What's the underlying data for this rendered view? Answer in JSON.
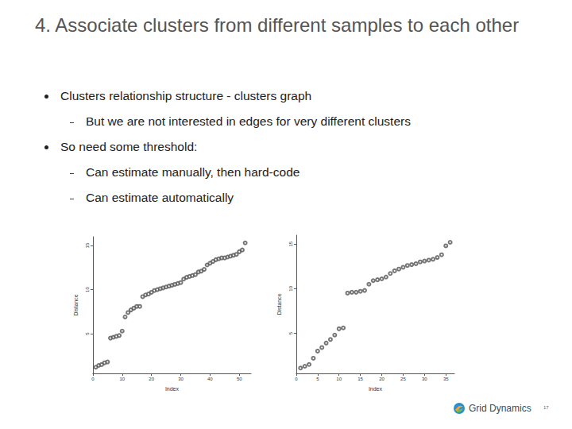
{
  "slide": {
    "title": "4. Associate clusters from different samples to each other",
    "bullets": [
      {
        "text": "Clusters relationship structure - clusters graph",
        "sub": [
          "But we are not interested in edges for very different clusters"
        ]
      },
      {
        "text": "So need some threshold:",
        "sub": [
          "Can estimate manually, then hard-code",
          "Can estimate automatically"
        ]
      }
    ],
    "footer": "Grid Dynamics",
    "page": "17"
  },
  "chart_data": [
    {
      "type": "scatter",
      "xlabel": "Index",
      "ylabel": "Distance",
      "x": [
        1,
        2,
        3,
        4,
        5,
        6,
        7,
        8,
        9,
        10,
        11,
        12,
        13,
        14,
        15,
        16,
        17,
        18,
        19,
        20,
        21,
        22,
        23,
        24,
        25,
        26,
        27,
        28,
        29,
        30,
        31,
        32,
        33,
        34,
        35,
        36,
        37,
        38,
        39,
        40,
        41,
        42,
        43,
        44,
        45,
        46,
        47,
        48,
        49,
        50,
        51,
        52
      ],
      "values": [
        1.2,
        1.4,
        1.5,
        1.7,
        1.8,
        4.5,
        4.6,
        4.7,
        4.8,
        5.3,
        6.9,
        7.4,
        7.7,
        7.9,
        8.1,
        8.1,
        9.2,
        9.4,
        9.5,
        9.7,
        9.9,
        10.0,
        10.1,
        10.2,
        10.3,
        10.4,
        10.5,
        10.6,
        10.7,
        10.8,
        11.2,
        11.4,
        11.5,
        11.6,
        11.7,
        12.0,
        12.1,
        12.3,
        12.8,
        13.0,
        13.2,
        13.4,
        13.5,
        13.6,
        13.6,
        13.7,
        13.8,
        13.9,
        14.0,
        14.3,
        14.5,
        15.3
      ],
      "xlim": [
        0,
        54
      ],
      "ylim": [
        0.5,
        16
      ],
      "xticks": [
        0,
        10,
        20,
        30,
        40,
        50
      ],
      "yticks": [
        5,
        10,
        15
      ],
      "color": "#555555",
      "marker": "circle_open",
      "grid": false
    },
    {
      "type": "scatter",
      "xlabel": "Index",
      "ylabel": "Distance",
      "x": [
        1,
        2,
        3,
        4,
        5,
        6,
        7,
        8,
        9,
        10,
        11,
        12,
        13,
        14,
        15,
        16,
        17,
        18,
        19,
        20,
        21,
        22,
        23,
        24,
        25,
        26,
        27,
        28,
        29,
        30,
        31,
        32,
        33,
        34,
        35,
        36
      ],
      "values": [
        1.1,
        1.3,
        1.5,
        2.2,
        3.0,
        3.4,
        3.9,
        4.3,
        4.8,
        5.5,
        5.6,
        9.5,
        9.6,
        9.6,
        9.7,
        9.8,
        10.5,
        10.9,
        11.0,
        11.1,
        11.3,
        11.7,
        12.0,
        12.2,
        12.4,
        12.6,
        12.7,
        12.8,
        13.0,
        13.1,
        13.2,
        13.3,
        13.5,
        13.8,
        14.8,
        15.2
      ],
      "xlim": [
        0,
        37
      ],
      "ylim": [
        0.5,
        16
      ],
      "xticks": [
        0,
        5,
        10,
        15,
        20,
        25,
        30,
        35
      ],
      "yticks": [
        5,
        10,
        15
      ],
      "color": "#555555",
      "marker": "circle_open",
      "grid": false
    }
  ]
}
